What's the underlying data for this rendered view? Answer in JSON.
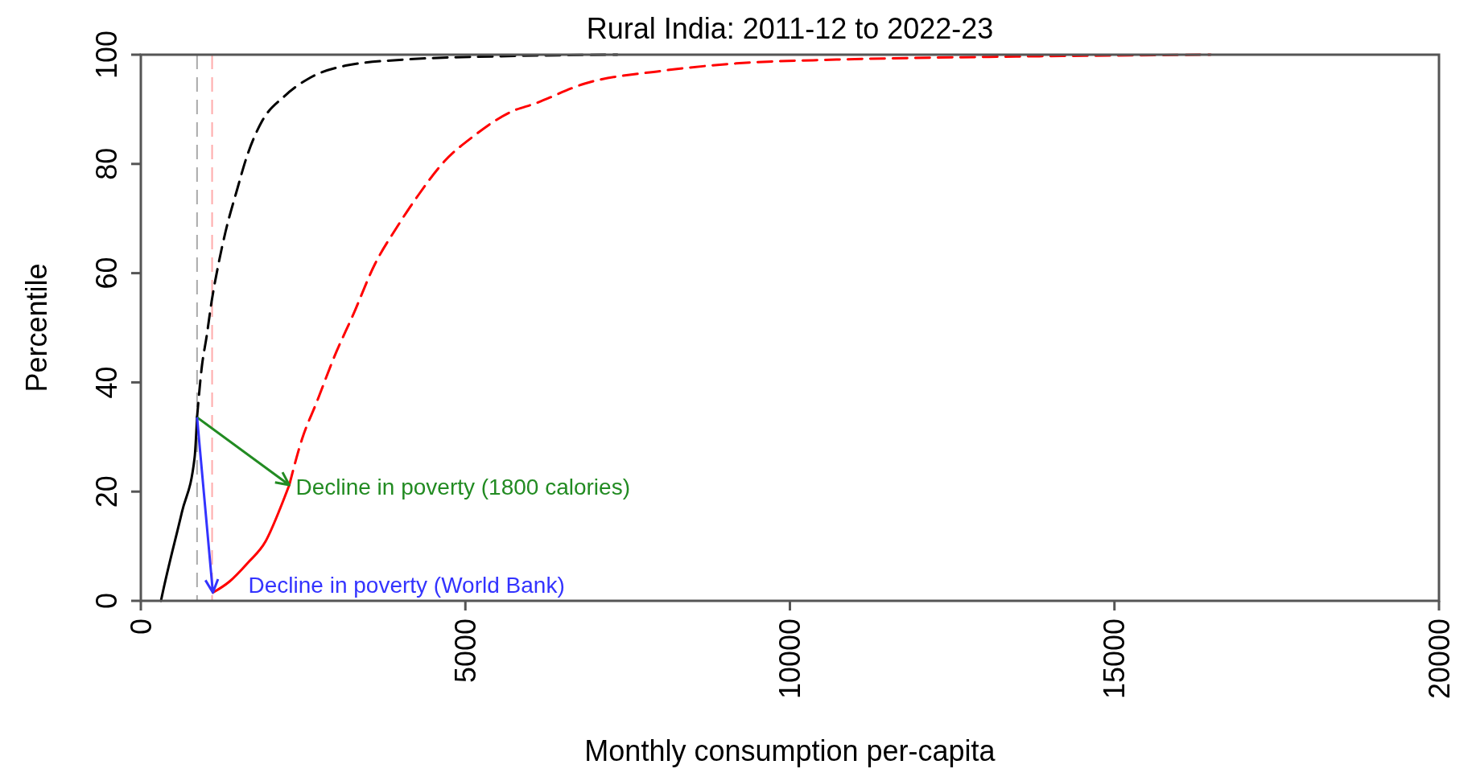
{
  "chart_data": {
    "type": "line",
    "title": "Rural India: 2011-12 to 2022-23",
    "xlabel": "Monthly consumption per-capita",
    "ylabel": "Percentile",
    "xlim": [
      0,
      20000
    ],
    "xticks": [
      0,
      5000,
      10000,
      15000,
      20000
    ],
    "ylim": [
      0,
      100
    ],
    "yticks": [
      0,
      20,
      40,
      60,
      80,
      100
    ],
    "grid": false,
    "series": [
      {
        "color": "#000000",
        "line_style": "solid",
        "x": [
          310,
          326,
          634,
          829,
          866
        ],
        "values": [
          0,
          0.9,
          16.3,
          26.3,
          33.6
        ]
      },
      {
        "color": "#000000",
        "line_style": "dashed",
        "x": [
          866,
          940,
          1012,
          1093,
          1195,
          1305,
          1476,
          1643,
          1866,
          2203,
          2595,
          3155,
          4050,
          5500,
          7340
        ],
        "values": [
          33.6,
          42.9,
          48.3,
          55,
          61.6,
          67.6,
          75,
          81.7,
          87.8,
          92.3,
          95.7,
          98,
          99.1,
          99.7,
          100
        ]
      },
      {
        "color": "#ff0000",
        "line_style": "solid",
        "x": [
          1110,
          1362,
          1643,
          1922,
          2146,
          2287
        ],
        "values": [
          1.5,
          3.5,
          6.9,
          10.9,
          16.9,
          21.2
        ]
      },
      {
        "color": "#ff0000",
        "line_style": "dashed",
        "x": [
          2287,
          2483,
          2707,
          2988,
          3268,
          3604,
          3939,
          4276,
          4671,
          5117,
          5732,
          6059,
          6837,
          8000,
          9171,
          10720,
          13060,
          16480
        ],
        "values": [
          21.2,
          29.6,
          36.3,
          44.9,
          52.3,
          61.6,
          68.3,
          74.3,
          80.4,
          85,
          89.7,
          91,
          94.7,
          97,
          98.4,
          99.1,
          99.6,
          100
        ]
      }
    ],
    "ref_lines": [
      {
        "axis": "x",
        "value": 866,
        "color": "#aaaaaa",
        "line_style": "dashed"
      },
      {
        "axis": "x",
        "value": 1098,
        "color": "#ffaaaa",
        "line_style": "dashed"
      }
    ],
    "annotations": [
      {
        "text": "Decline in poverty (1800 calories)",
        "x": 2287,
        "y": 21.2
      },
      {
        "text": "Decline in poverty (World Bank)",
        "x": 1110,
        "y": 1.5
      }
    ]
  }
}
